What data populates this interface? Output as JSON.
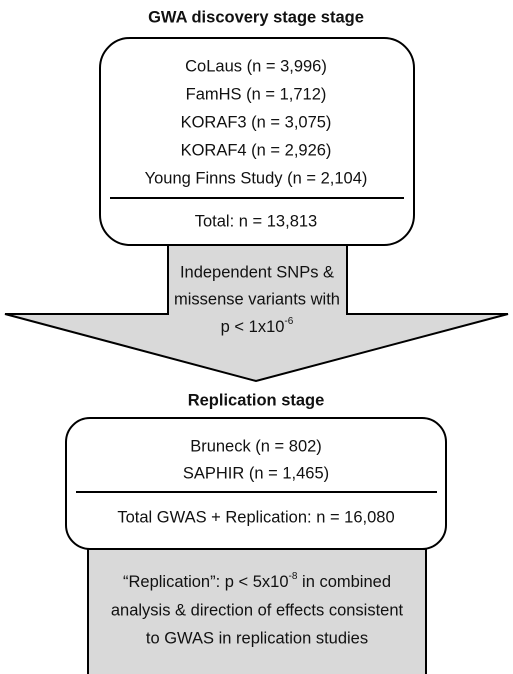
{
  "discovery": {
    "title": "GWA discovery stage stage",
    "studies": [
      "CoLaus (n = 3,996)",
      "FamHS (n = 1,712)",
      "KORAF3 (n = 3,075)",
      "KORAF4 (n = 2,926)",
      "Young Finns Study (n = 2,104)"
    ],
    "total": "Total: n = 13,813"
  },
  "arrow": {
    "lines": [
      "Independent SNPs &",
      "missense variants with"
    ],
    "p_base": "p < 1x10",
    "p_exp": "-6"
  },
  "replication": {
    "title": "Replication stage",
    "studies": [
      "Bruneck (n = 802)",
      "SAPHIR (n = 1,465)"
    ],
    "total": "Total GWAS + Replication: n = 16,080"
  },
  "criteria": {
    "line1_base": "“Replication”: p < 5x10",
    "line1_exp": "-8",
    "line1_rest": " in combined",
    "lines": [
      "analysis & direction of effects consistent",
      "to GWAS in replication studies"
    ]
  }
}
